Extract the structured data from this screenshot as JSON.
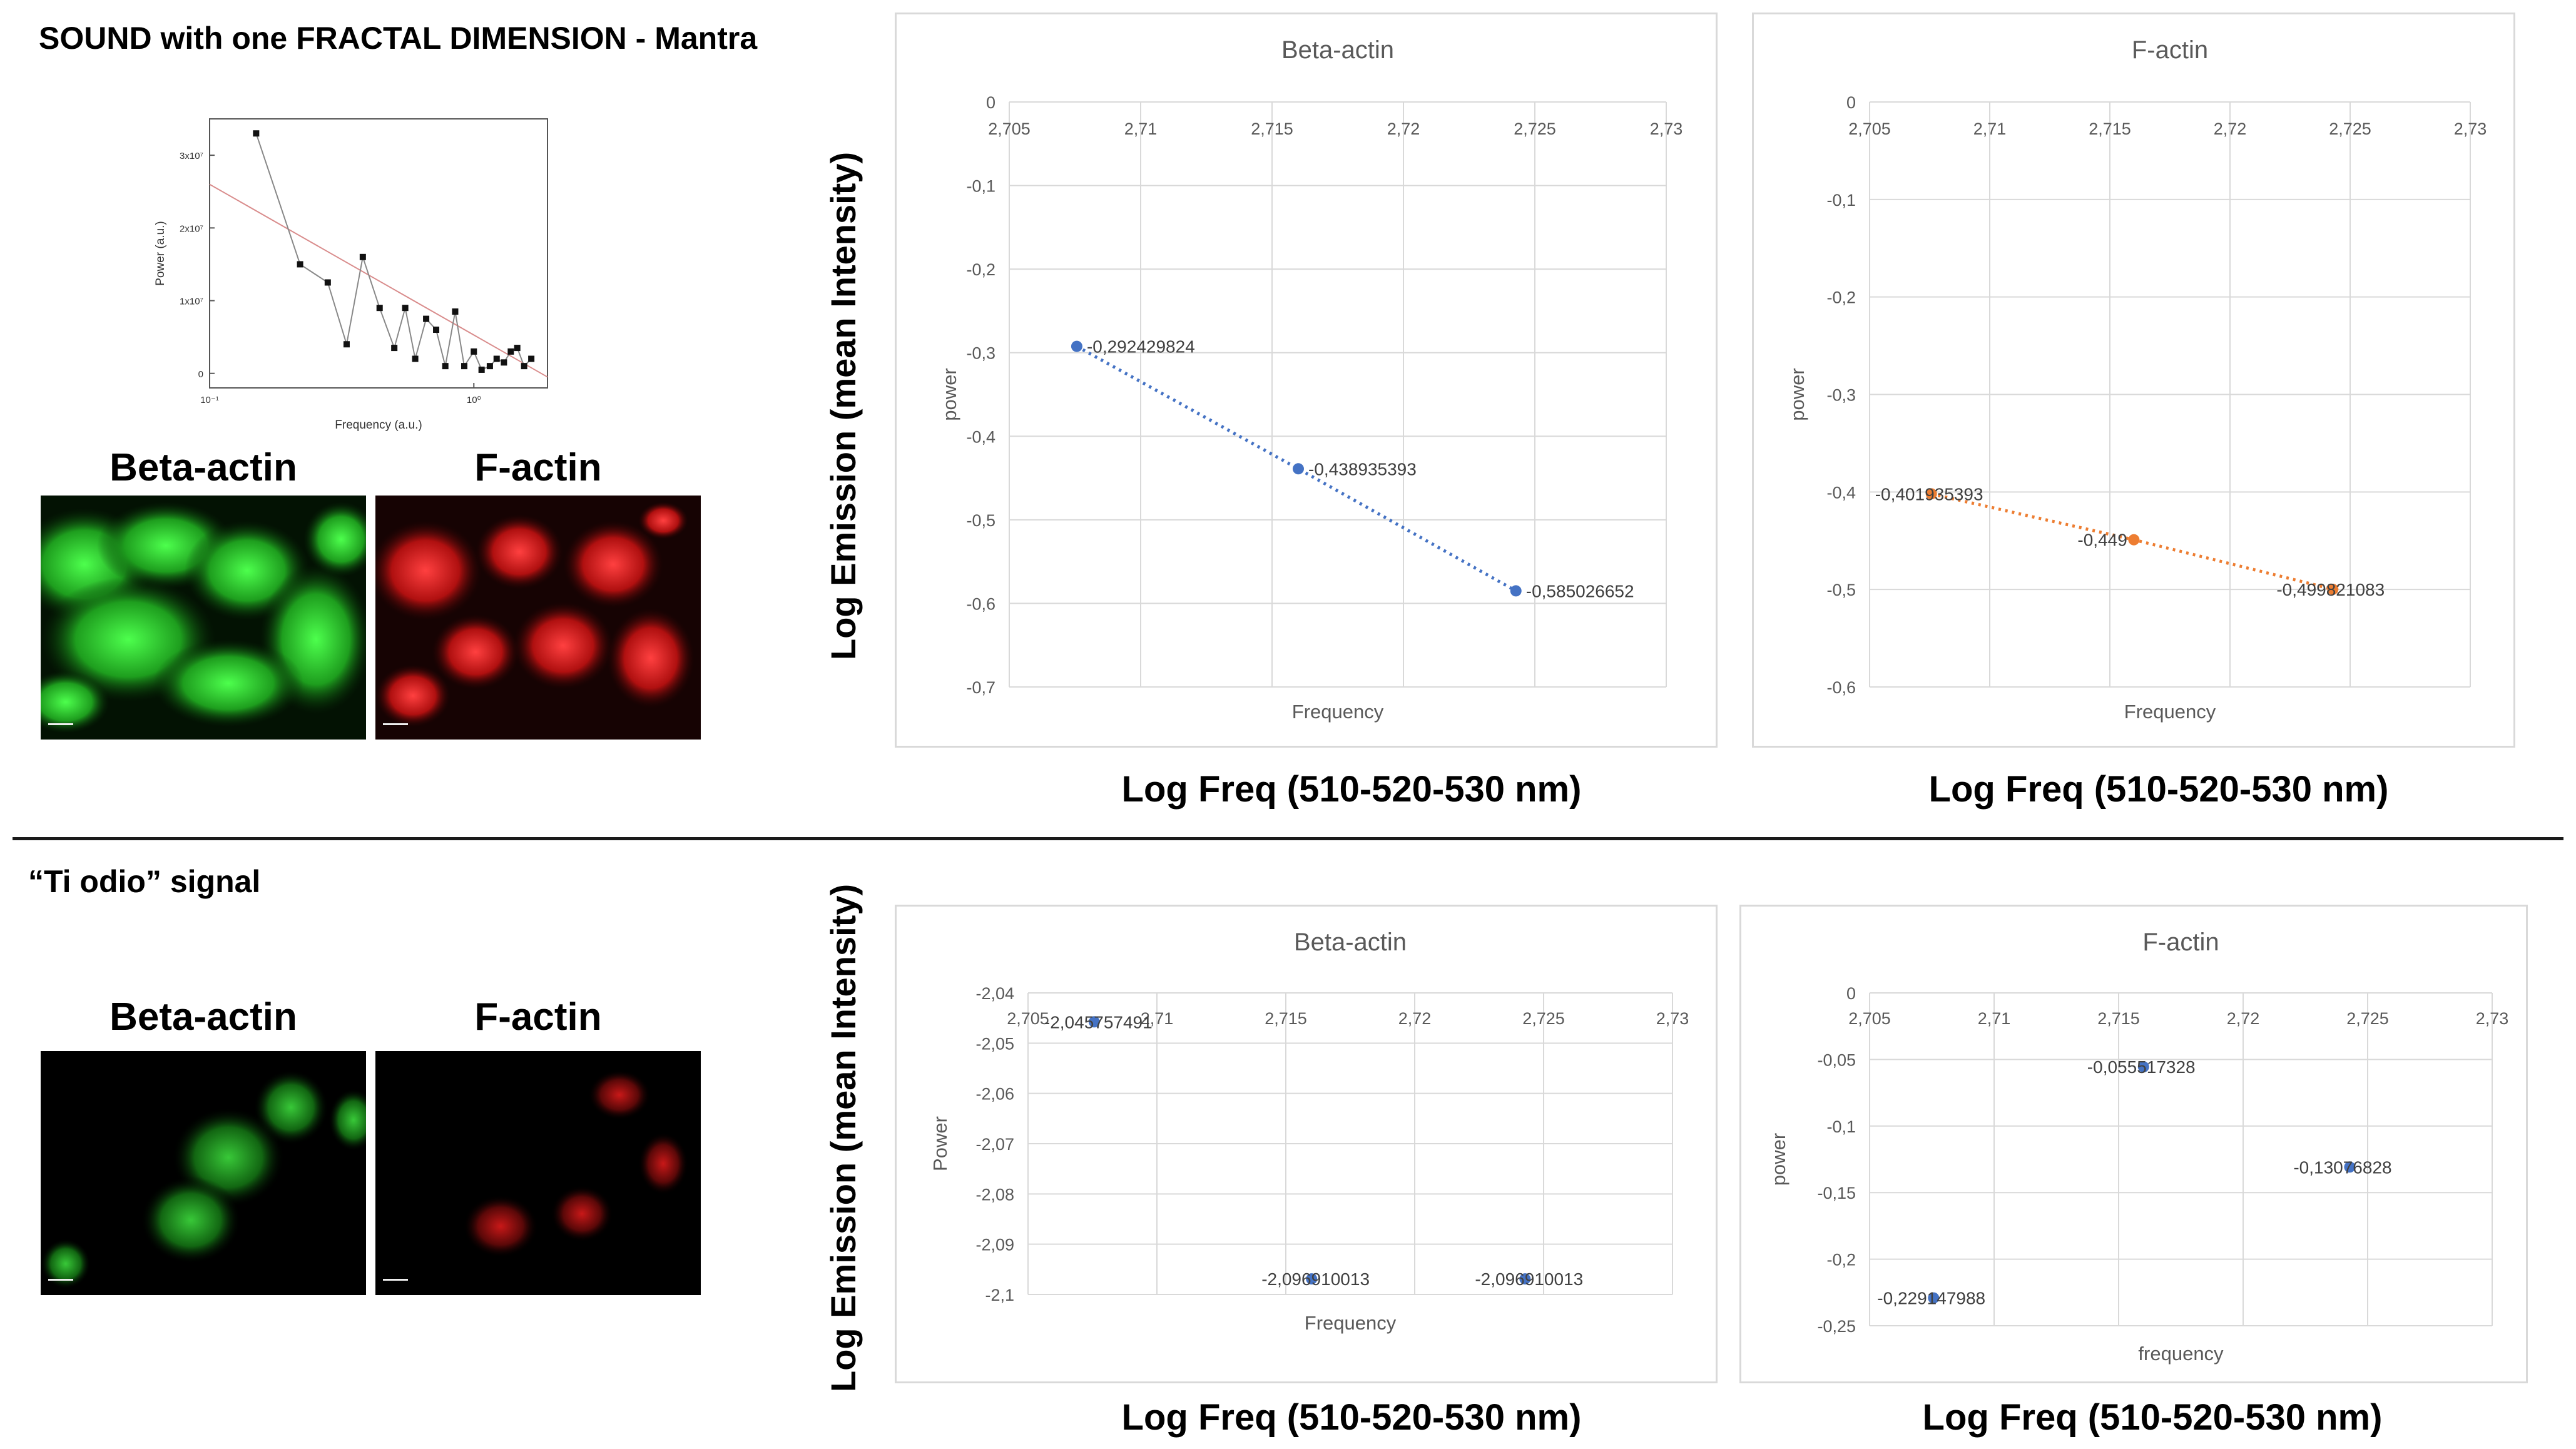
{
  "top": {
    "title": "SOUND with one FRACTAL DIMENSION - Mantra",
    "labels": {
      "beta": "Beta-actin",
      "factin": "F-actin"
    },
    "ylabel": "Log Emission (mean Intensity)",
    "xlabel": "Log Freq (510-520-530 nm)"
  },
  "bottom": {
    "title": "“Ti odio” signal",
    "labels": {
      "beta": "Beta-actin",
      "factin": "F-actin"
    },
    "ylabel": "Log Emission (mean Intensity)",
    "xlabel": "Log Freq (510-520-530 nm)"
  },
  "colors": {
    "blue": "#4472c4",
    "orange": "#ed7d31",
    "green": "#2ecc2e",
    "red": "#e01818"
  },
  "chart_data": [
    {
      "id": "mantra-spectrum",
      "type": "line",
      "title": "",
      "xlabel": "Frequency (a.u.)",
      "ylabel": "Power (a.u.)",
      "xscale": "log",
      "xticks": [
        "10⁻¹",
        "10⁰"
      ],
      "yticks": [
        "0",
        "1x10⁷",
        "2x10⁷",
        "3x10⁷"
      ],
      "xlim": [
        0.1,
        1.9
      ],
      "ylim": [
        -0.2,
        3.5
      ],
      "series": [
        {
          "x": [
            0.15,
            0.22,
            0.28,
            0.33,
            0.38,
            0.44,
            0.5,
            0.55,
            0.6,
            0.66,
            0.72,
            0.78,
            0.85,
            0.92,
            1.0,
            1.07,
            1.15,
            1.22,
            1.3,
            1.38,
            1.46,
            1.55,
            1.65
          ],
          "values": [
            3.3,
            1.5,
            1.25,
            0.4,
            1.6,
            0.9,
            0.35,
            0.9,
            0.2,
            0.75,
            0.6,
            0.1,
            0.85,
            0.1,
            0.3,
            0.05,
            0.1,
            0.2,
            0.15,
            0.3,
            0.35,
            0.1,
            0.2
          ]
        }
      ],
      "trend": {
        "x": [
          0.1,
          1.9
        ],
        "values": [
          2.6,
          -0.05
        ]
      }
    },
    {
      "id": "mantra-beta",
      "type": "line",
      "title": "Beta-actin",
      "xlabel": "Frequency",
      "ylabel": "power",
      "xlim": [
        2.705,
        2.73
      ],
      "ylim": [
        -0.7,
        0
      ],
      "xticks": [
        "2,705",
        "2,71",
        "2,715",
        "2,72",
        "2,725",
        "2,73"
      ],
      "yticks": [
        "0",
        "-0,1",
        "-0,2",
        "-0,3",
        "-0,4",
        "-0,5",
        "-0,6",
        "-0,7"
      ],
      "series": [
        {
          "x": [
            2.70757,
            2.716,
            2.72428
          ],
          "values": [
            -0.292429824,
            -0.438935393,
            -0.585026652
          ],
          "labels": [
            "-0,292429824",
            "-0,438935393",
            "-0,585026652"
          ]
        }
      ]
    },
    {
      "id": "mantra-factin",
      "type": "line",
      "title": "F-actin",
      "xlabel": "Frequency",
      "ylabel": "power",
      "xlim": [
        2.705,
        2.73
      ],
      "ylim": [
        -0.6,
        0
      ],
      "xticks": [
        "2,705",
        "2,71",
        "2,715",
        "2,72",
        "2,725",
        "2,73"
      ],
      "yticks": [
        "0",
        "-0,1",
        "-0,2",
        "-0,3",
        "-0,4",
        "-0,5",
        "-0,6"
      ],
      "series": [
        {
          "x": [
            2.70757,
            2.716,
            2.72428
          ],
          "values": [
            -0.401935393,
            -0.449,
            -0.499821083
          ],
          "labels": [
            "-0,401935393",
            "-0,449",
            "-0,499821083"
          ]
        }
      ]
    },
    {
      "id": "tiodio-beta",
      "type": "scatter",
      "title": "Beta-actin",
      "xlabel": "Frequency",
      "ylabel": "Power",
      "xlim": [
        2.705,
        2.73
      ],
      "ylim": [
        -2.1,
        -2.04
      ],
      "xticks": [
        "2,705",
        "2,71",
        "2,715",
        "2,72",
        "2,725",
        "2,73"
      ],
      "yticks": [
        "-2,04",
        "-2,05",
        "-2,06",
        "-2,07",
        "-2,08",
        "-2,09",
        "-2,1"
      ],
      "series": [
        {
          "x": [
            2.70757,
            2.716,
            2.72428
          ],
          "values": [
            -2.045757491,
            -2.096910013,
            -2.096910013
          ],
          "labels": [
            "-2,045757491",
            "-2,096910013",
            "-2,096910013"
          ]
        }
      ]
    },
    {
      "id": "tiodio-factin",
      "type": "scatter",
      "title": "F-actin",
      "xlabel": "frequency",
      "ylabel": "power",
      "xlim": [
        2.705,
        2.73
      ],
      "ylim": [
        -0.25,
        0
      ],
      "xticks": [
        "2,705",
        "2,71",
        "2,715",
        "2,72",
        "2,725",
        "2,73"
      ],
      "yticks": [
        "0",
        "-0,05",
        "-0,1",
        "-0,15",
        "-0,2",
        "-0,25"
      ],
      "series": [
        {
          "x": [
            2.70757,
            2.716,
            2.72428
          ],
          "values": [
            -0.229147988,
            -0.055517328,
            -0.13076828
          ],
          "labels": [
            "-0,229147988",
            "-0,055517328",
            "-0,13076828"
          ]
        }
      ]
    }
  ]
}
